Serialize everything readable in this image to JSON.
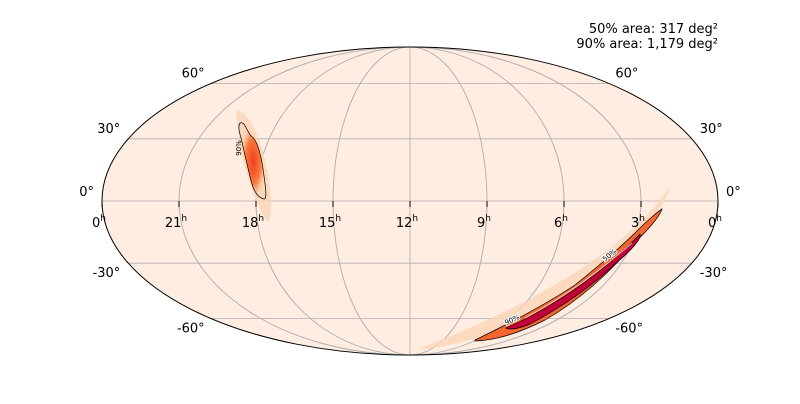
{
  "chart_data": {
    "type": "heatmap",
    "projection": "mollweide",
    "annotations": [
      "50% area: 317 deg²",
      "90% area: 1,179 deg²"
    ],
    "ra_ticks": [
      {
        "label": "0",
        "hours": 24
      },
      {
        "label": "21",
        "hours": 21
      },
      {
        "label": "18",
        "hours": 18
      },
      {
        "label": "15",
        "hours": 15
      },
      {
        "label": "12",
        "hours": 12
      },
      {
        "label": "9",
        "hours": 9
      },
      {
        "label": "6",
        "hours": 6
      },
      {
        "label": "3",
        "hours": 3
      },
      {
        "label": "0",
        "hours": 0
      }
    ],
    "ra_unit": "h",
    "dec_ticks": [
      {
        "label": "60°",
        "dec": 60
      },
      {
        "label": "30°",
        "dec": 30
      },
      {
        "label": "0°",
        "dec": 0
      },
      {
        "label": "-30°",
        "dec": -30
      },
      {
        "label": "-60°",
        "dec": -60
      }
    ],
    "grid": true,
    "contours": [
      {
        "level": "90%",
        "label": "90%"
      },
      {
        "level": "50%",
        "label": "50%"
      }
    ],
    "colormap": "cylon",
    "background_color": "#feede0"
  }
}
